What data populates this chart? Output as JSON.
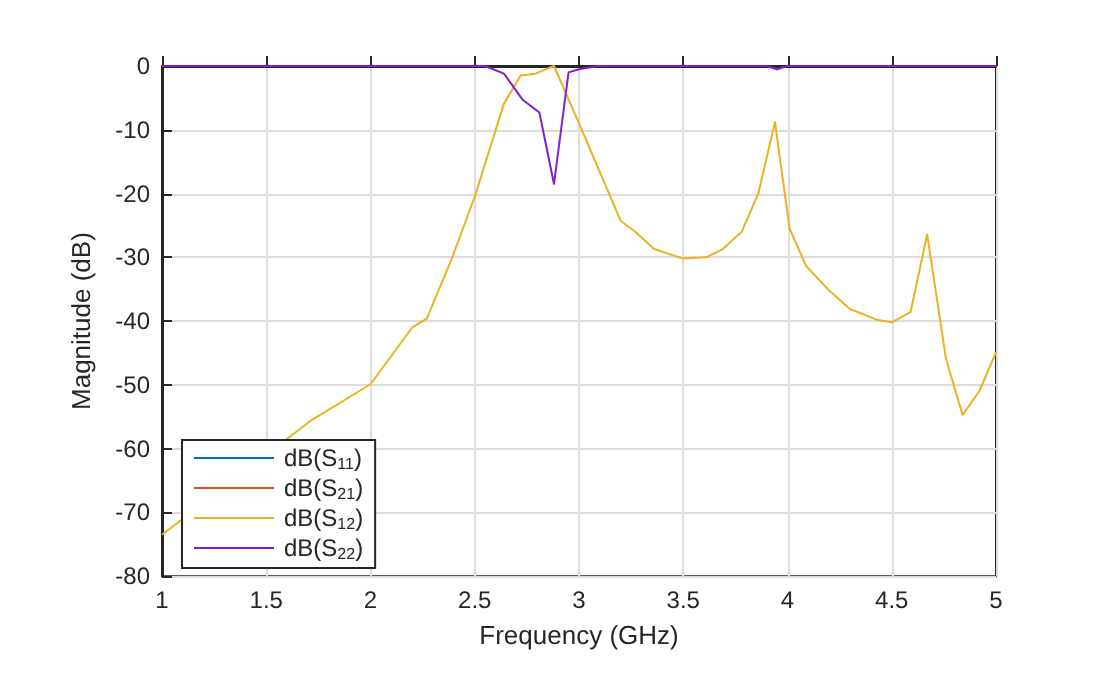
{
  "chart_data": {
    "type": "line",
    "xlabel": "Frequency (GHz)",
    "ylabel": "Magnitude (dB)",
    "xlim": [
      1,
      5
    ],
    "ylim": [
      -80,
      0
    ],
    "xticks": [
      1,
      1.5,
      2,
      2.5,
      3,
      3.5,
      4,
      4.5,
      5
    ],
    "yticks": [
      -80,
      -70,
      -60,
      -50,
      -40,
      -30,
      -20,
      -10,
      0
    ],
    "grid": true,
    "legend": "bottom left",
    "marker": "none",
    "line_style": "solid",
    "series": [
      {
        "name": "dB(S$_{11}$)",
        "color": "#0072bd"
      },
      {
        "name": "dB(S$_{21}$)",
        "color": "#d95319"
      },
      {
        "name": "dB(S$_{12}$)",
        "color": "#edb120",
        "x": [
          1,
          1.71,
          2,
          2.2,
          2.27,
          2.39,
          2.5,
          2.64,
          2.72,
          2.79,
          2.88,
          3,
          3.2,
          3.27,
          3.36,
          3.5,
          3.61,
          3.69,
          3.78,
          3.86,
          3.94,
          4.01,
          4.09,
          4.2,
          4.3,
          4.43,
          4.5,
          4.59,
          4.67,
          4.76,
          4.84,
          4.92,
          5
        ],
        "values": [
          -73.5,
          -55.7,
          -49.9,
          -41,
          -39.6,
          -30.2,
          -20.5,
          -5.9,
          -1.5,
          -1.2,
          0,
          -9,
          -24.3,
          -26,
          -28.7,
          -30.2,
          -30,
          -28.7,
          -26,
          -20,
          -8.8,
          -25.5,
          -31.4,
          -35.2,
          -38.1,
          -39.8,
          -40.2,
          -38.6,
          -26.4,
          -45.9,
          -54.7,
          -51,
          -44.9
        ]
      },
      {
        "name": "dB(S$_{22}$)",
        "color": "#7e1fd6",
        "x": [
          1,
          2.55,
          2.64,
          2.73,
          2.81,
          2.88,
          2.95,
          3,
          3.09,
          3.9,
          3.95,
          4,
          5
        ],
        "values": [
          0,
          0,
          -1.2,
          -5.3,
          -7.3,
          -18.5,
          -1,
          -0.5,
          0,
          0,
          -0.5,
          0,
          0
        ]
      }
    ]
  }
}
